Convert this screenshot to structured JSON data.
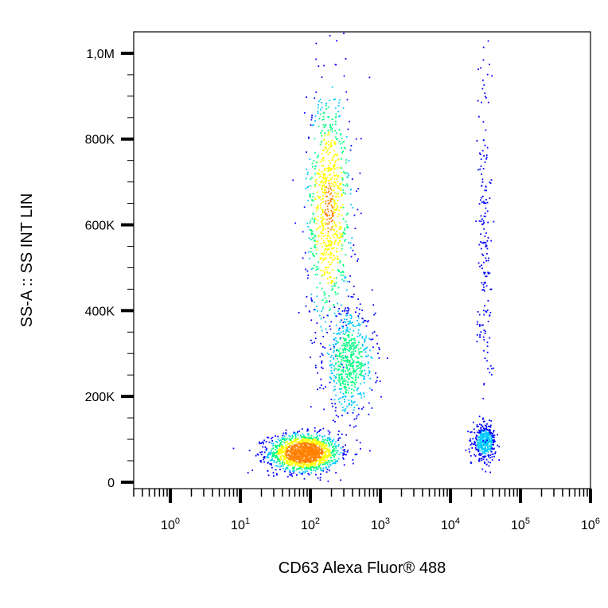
{
  "chart_data": {
    "type": "scatter",
    "style": "density-dot-plot",
    "xlabel": "CD63 Alexa Fluor® 488",
    "ylabel": "SS-A :: SS INT LIN",
    "x_scale": "log",
    "xlim": [
      0.3,
      1000000
    ],
    "ylim": [
      -15000,
      1050000
    ],
    "x_ticks": [
      {
        "value": 1,
        "base": "10",
        "exp": "0"
      },
      {
        "value": 10,
        "base": "10",
        "exp": "1"
      },
      {
        "value": 100,
        "base": "10",
        "exp": "2"
      },
      {
        "value": 1000,
        "base": "10",
        "exp": "3"
      },
      {
        "value": 10000,
        "base": "10",
        "exp": "4"
      },
      {
        "value": 100000,
        "base": "10",
        "exp": "5"
      },
      {
        "value": 1000000,
        "base": "10",
        "exp": "6"
      }
    ],
    "y_ticks": [
      {
        "value": 0,
        "label": "0"
      },
      {
        "value": 200000,
        "label": "200K"
      },
      {
        "value": 400000,
        "label": "400K"
      },
      {
        "value": 600000,
        "label": "600K"
      },
      {
        "value": 800000,
        "label": "800K"
      },
      {
        "value": 1000000,
        "label": "1,0M"
      }
    ],
    "colormap": [
      "#0000ff",
      "#00c8ff",
      "#00ff80",
      "#ffff00",
      "#ff8000",
      "#ff0000"
    ],
    "populations": [
      {
        "center_x": 80,
        "center_y": 70000,
        "spread_log_x": 0.25,
        "spread_y": 22000,
        "density": 1.0
      },
      {
        "center_x": 180,
        "center_y": 640000,
        "spread_log_x": 0.16,
        "spread_y": 140000,
        "density": 0.55
      },
      {
        "center_x": 350,
        "center_y": 280000,
        "spread_log_x": 0.18,
        "spread_y": 60000,
        "density": 0.35
      },
      {
        "center_x": 30000,
        "center_y": 95000,
        "spread_log_x": 0.08,
        "spread_y": 20000,
        "density": 0.2
      },
      {
        "center_x": 30000,
        "center_y": 550000,
        "spread_log_x": 0.05,
        "spread_y": 250000,
        "density": 0.05
      }
    ]
  }
}
